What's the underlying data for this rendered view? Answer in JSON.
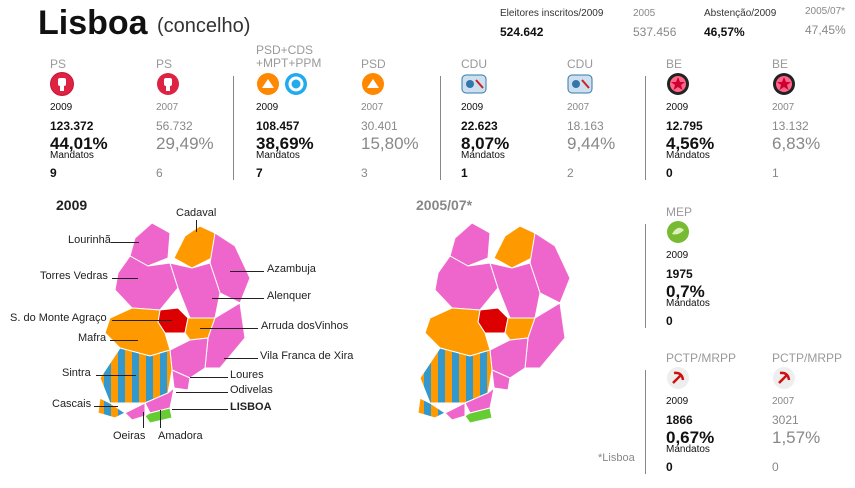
{
  "header": {
    "title": "Lisboa",
    "subtitle": "(concelho)",
    "registered_label": "Eleitores inscritos/2009",
    "registered_value": "524.642",
    "registered_prev_label": "2005",
    "registered_prev_value": "537.456",
    "abstention_label": "Abstenção/2009",
    "abstention_value": "46,57%",
    "abstention_prev_label": "2005/07*",
    "abstention_prev_value": "47,45%"
  },
  "parties": [
    {
      "name": "PS",
      "year": "2009",
      "votes": "123.372",
      "pct": "44,01%",
      "mandates_label": "Mandatos",
      "mandates": "9",
      "logo": "ps-fist-icon"
    },
    {
      "name": "PS",
      "year": "2007",
      "votes": "56.732",
      "pct": "29,49%",
      "mandates": "6",
      "logo": "ps-fist-icon"
    },
    {
      "name": "PSD+CDS +MPT+PPM",
      "year": "2009",
      "votes": "108.457",
      "pct": "38,69%",
      "mandates_label": "Mandatos",
      "mandates": "7",
      "logo": "psd-arrow-icon"
    },
    {
      "name": "PSD",
      "year": "2007",
      "votes": "30.401",
      "pct": "15,80%",
      "mandates": "3",
      "logo": "psd-arrow-icon"
    },
    {
      "name": "CDU",
      "year": "2009",
      "votes": "22.623",
      "pct": "8,07%",
      "mandates_label": "Mandatos",
      "mandates": "1",
      "logo": "cdu-icon"
    },
    {
      "name": "CDU",
      "year": "2007",
      "votes": "18.163",
      "pct": "9,44%",
      "mandates": "2",
      "logo": "cdu-icon"
    },
    {
      "name": "BE",
      "year": "2009",
      "votes": "12.795",
      "pct": "4,56%",
      "mandates_label": "Mandatos",
      "mandates": "0",
      "logo": "be-star-icon"
    },
    {
      "name": "BE",
      "year": "2007",
      "votes": "13.132",
      "pct": "6,83%",
      "mandates": "1",
      "logo": "be-star-icon"
    }
  ],
  "mep": {
    "name": "MEP",
    "year": "2009",
    "votes": "1975",
    "pct": "0,7%",
    "mandates_label": "Mandatos",
    "mandates": "0"
  },
  "pctp": [
    {
      "name": "PCTP/MRPP",
      "year": "2009",
      "votes": "1866",
      "pct": "0,67%",
      "mandates_label": "Mandatos",
      "mandates": "0"
    },
    {
      "name": "PCTP/MRPP",
      "year": "2007",
      "votes": "3021",
      "pct": "1,57%",
      "mandates": "0"
    }
  ],
  "maps": {
    "title_2009": "2009",
    "title_prev": "2005/07*",
    "footnote": "*Lisboa",
    "labels": {
      "cadaval": "Cadaval",
      "lourinha": "Lourinhã",
      "azambuja": "Azambuja",
      "torres_vedras": "Torres Vedras",
      "alenquer": "Alenquer",
      "sobral": "S. do Monte Agraço",
      "arruda": "Arruda dosVinhos",
      "mafra": "Mafra",
      "vila_franca": "Vila Franca de Xira",
      "sintra": "Sintra",
      "loures": "Loures",
      "odivelas": "Odivelas",
      "cascais": "Cascais",
      "lisboa": "LISBOA",
      "oeiras": "Oeiras",
      "amadora": "Amadora"
    }
  },
  "colors": {
    "ps": "#ee66cc",
    "psd": "#ff9900",
    "cdu": "#3399cc",
    "lisboa": "#66cc33",
    "red": "#dd0000",
    "be": "#cc0033"
  }
}
